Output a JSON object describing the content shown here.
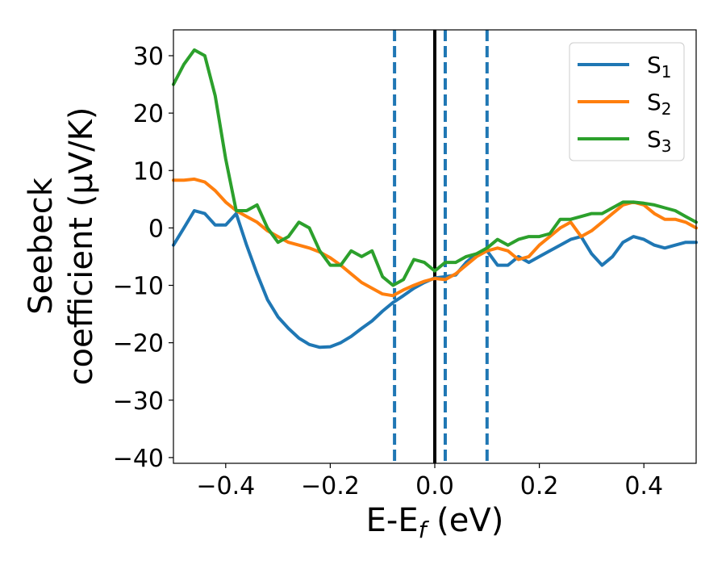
{
  "chart_data": {
    "type": "line",
    "xlabel": "E-E",
    "xlabel_sub": "f",
    "xlabel_unit": " (eV)",
    "ylabel_line1": "Seebeck",
    "ylabel_line2": "coefficient  (μV/K)",
    "xlim": [
      -0.5,
      0.5
    ],
    "ylim": [
      -41,
      34.5
    ],
    "xticks": [
      -0.4,
      -0.2,
      0.0,
      0.2,
      0.4
    ],
    "xtick_labels": [
      "−0.4",
      "−0.2",
      "0.0",
      "0.2",
      "0.4"
    ],
    "yticks": [
      -40,
      -30,
      -20,
      -10,
      0,
      10,
      20,
      30
    ],
    "ytick_labels": [
      "−40",
      "−30",
      "−20",
      "−10",
      "0",
      "10",
      "20",
      "30"
    ],
    "grid": false,
    "legend_position": "top-right",
    "vlines": [
      {
        "x": 0.0,
        "style": "solid",
        "color": "#000000"
      },
      {
        "x": -0.077,
        "style": "dashed",
        "color": "#1f77b4"
      },
      {
        "x": 0.02,
        "style": "dashed",
        "color": "#1f77b4"
      },
      {
        "x": 0.1,
        "style": "dashed",
        "color": "#1f77b4"
      }
    ],
    "series": [
      {
        "name": "S",
        "subscript": "1",
        "color": "#1f77b4",
        "points": [
          [
            -0.5,
            -3
          ],
          [
            -0.48,
            0
          ],
          [
            -0.46,
            3
          ],
          [
            -0.44,
            2.5
          ],
          [
            -0.42,
            0.5
          ],
          [
            -0.4,
            0.5
          ],
          [
            -0.38,
            2.5
          ],
          [
            -0.36,
            -3
          ],
          [
            -0.34,
            -8
          ],
          [
            -0.32,
            -12.5
          ],
          [
            -0.3,
            -15.5
          ],
          [
            -0.28,
            -17.5
          ],
          [
            -0.26,
            -19.2
          ],
          [
            -0.24,
            -20.3
          ],
          [
            -0.22,
            -20.8
          ],
          [
            -0.2,
            -20.7
          ],
          [
            -0.18,
            -20
          ],
          [
            -0.16,
            -18.9
          ],
          [
            -0.14,
            -17.5
          ],
          [
            -0.12,
            -16.2
          ],
          [
            -0.1,
            -14.5
          ],
          [
            -0.08,
            -13
          ],
          [
            -0.06,
            -11.8
          ],
          [
            -0.04,
            -10.5
          ],
          [
            -0.02,
            -9.5
          ],
          [
            0.0,
            -8.7
          ],
          [
            0.02,
            -8.5
          ],
          [
            0.04,
            -8.2
          ],
          [
            0.06,
            -6
          ],
          [
            0.08,
            -4.5
          ],
          [
            0.1,
            -4
          ],
          [
            0.12,
            -6.5
          ],
          [
            0.14,
            -6.5
          ],
          [
            0.16,
            -5
          ],
          [
            0.18,
            -6
          ],
          [
            0.2,
            -5
          ],
          [
            0.22,
            -4
          ],
          [
            0.24,
            -3
          ],
          [
            0.26,
            -2
          ],
          [
            0.28,
            -1.5
          ],
          [
            0.3,
            -4.5
          ],
          [
            0.32,
            -6.5
          ],
          [
            0.34,
            -5
          ],
          [
            0.36,
            -2.5
          ],
          [
            0.38,
            -1.5
          ],
          [
            0.4,
            -2
          ],
          [
            0.42,
            -3
          ],
          [
            0.44,
            -3.5
          ],
          [
            0.46,
            -3
          ],
          [
            0.48,
            -2.5
          ],
          [
            0.5,
            -2.5
          ]
        ]
      },
      {
        "name": "S",
        "subscript": "2",
        "color": "#ff7f0e",
        "points": [
          [
            -0.5,
            8.3
          ],
          [
            -0.48,
            8.3
          ],
          [
            -0.46,
            8.5
          ],
          [
            -0.44,
            8
          ],
          [
            -0.42,
            6.5
          ],
          [
            -0.4,
            4.5
          ],
          [
            -0.38,
            3
          ],
          [
            -0.36,
            2
          ],
          [
            -0.34,
            1
          ],
          [
            -0.32,
            -0.5
          ],
          [
            -0.3,
            -1.5
          ],
          [
            -0.28,
            -2.5
          ],
          [
            -0.26,
            -3
          ],
          [
            -0.24,
            -3.5
          ],
          [
            -0.22,
            -4.2
          ],
          [
            -0.2,
            -5.2
          ],
          [
            -0.18,
            -6.5
          ],
          [
            -0.16,
            -8
          ],
          [
            -0.14,
            -9.5
          ],
          [
            -0.12,
            -10.5
          ],
          [
            -0.1,
            -11.5
          ],
          [
            -0.08,
            -11.8
          ],
          [
            -0.06,
            -10.8
          ],
          [
            -0.04,
            -10
          ],
          [
            -0.02,
            -9.3
          ],
          [
            0.0,
            -8.8
          ],
          [
            0.02,
            -9
          ],
          [
            0.04,
            -8
          ],
          [
            0.06,
            -6.5
          ],
          [
            0.08,
            -5
          ],
          [
            0.1,
            -4
          ],
          [
            0.12,
            -3.5
          ],
          [
            0.14,
            -4
          ],
          [
            0.16,
            -5.5
          ],
          [
            0.18,
            -5
          ],
          [
            0.2,
            -3
          ],
          [
            0.22,
            -1.5
          ],
          [
            0.24,
            0
          ],
          [
            0.26,
            1
          ],
          [
            0.28,
            -1.5
          ],
          [
            0.3,
            -0.5
          ],
          [
            0.32,
            1
          ],
          [
            0.34,
            2.5
          ],
          [
            0.36,
            4
          ],
          [
            0.38,
            4.5
          ],
          [
            0.4,
            4
          ],
          [
            0.42,
            2.5
          ],
          [
            0.44,
            1.5
          ],
          [
            0.46,
            1.5
          ],
          [
            0.48,
            1
          ],
          [
            0.5,
            0
          ]
        ]
      },
      {
        "name": "S",
        "subscript": "3",
        "color": "#2ca02c",
        "points": [
          [
            -0.5,
            25
          ],
          [
            -0.48,
            28.5
          ],
          [
            -0.46,
            31
          ],
          [
            -0.44,
            30
          ],
          [
            -0.42,
            23
          ],
          [
            -0.4,
            12
          ],
          [
            -0.38,
            3
          ],
          [
            -0.36,
            3
          ],
          [
            -0.34,
            4
          ],
          [
            -0.32,
            0
          ],
          [
            -0.3,
            -2.5
          ],
          [
            -0.28,
            -1.5
          ],
          [
            -0.26,
            1
          ],
          [
            -0.24,
            0
          ],
          [
            -0.22,
            -4
          ],
          [
            -0.2,
            -6.5
          ],
          [
            -0.18,
            -6.5
          ],
          [
            -0.16,
            -4
          ],
          [
            -0.14,
            -5
          ],
          [
            -0.12,
            -4
          ],
          [
            -0.1,
            -8.5
          ],
          [
            -0.08,
            -10
          ],
          [
            -0.06,
            -9
          ],
          [
            -0.04,
            -5.5
          ],
          [
            -0.02,
            -6
          ],
          [
            0.0,
            -7.5
          ],
          [
            0.02,
            -6
          ],
          [
            0.04,
            -6
          ],
          [
            0.06,
            -5
          ],
          [
            0.08,
            -4.5
          ],
          [
            0.1,
            -3.5
          ],
          [
            0.12,
            -2
          ],
          [
            0.14,
            -3
          ],
          [
            0.16,
            -2
          ],
          [
            0.18,
            -1.5
          ],
          [
            0.2,
            -1.5
          ],
          [
            0.22,
            -1
          ],
          [
            0.24,
            1.5
          ],
          [
            0.26,
            1.5
          ],
          [
            0.28,
            2
          ],
          [
            0.3,
            2.5
          ],
          [
            0.32,
            2.5
          ],
          [
            0.34,
            3.5
          ],
          [
            0.36,
            4.5
          ],
          [
            0.38,
            4.5
          ],
          [
            0.4,
            4.3
          ],
          [
            0.42,
            4
          ],
          [
            0.44,
            3.5
          ],
          [
            0.46,
            3
          ],
          [
            0.48,
            2
          ],
          [
            0.5,
            1
          ]
        ]
      }
    ]
  }
}
